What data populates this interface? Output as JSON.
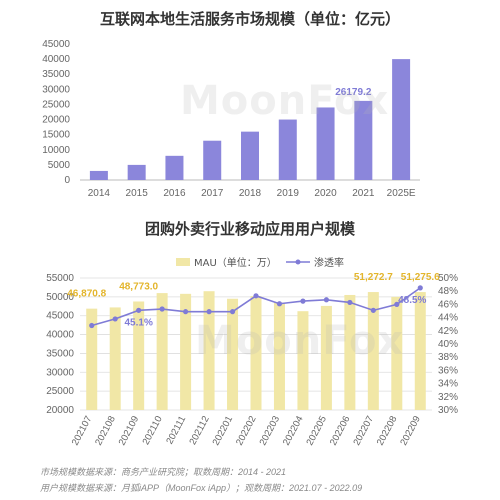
{
  "colors": {
    "bar1": "#8b86db",
    "bar2": "#f1e7a6",
    "line": "#7f7bd6",
    "label_gold": "#e3b52c",
    "label_purple": "#7f7bd6",
    "grid": "#dddddd",
    "axis_text": "#666666"
  },
  "watermark": "MoonFox",
  "sources": {
    "line1": "市场规模数据来源：商务产业研究院；取数周期：2014 - 2021",
    "line2": "用户规模数据来源：月狐iAPP（MoonFox iApp）；观数周期：2021.07 - 2022.09"
  },
  "chart_data": [
    {
      "type": "bar",
      "title": "互联网本地生活服务市场规模（单位：亿元）",
      "categories": [
        "2014",
        "2015",
        "2016",
        "2017",
        "2018",
        "2019",
        "2020",
        "2021",
        "2025E"
      ],
      "values": [
        3000,
        5000,
        8000,
        13000,
        16000,
        20000,
        24000,
        26179.2,
        40000
      ],
      "ylim": [
        0,
        45000
      ],
      "yticks": [
        0,
        5000,
        10000,
        15000,
        20000,
        25000,
        30000,
        35000,
        40000,
        45000
      ],
      "data_labels": [
        {
          "index": 7,
          "text": "26179.2"
        }
      ],
      "grid": false
    },
    {
      "type": "bar+line",
      "title": "团购外卖行业移动应用用户规模",
      "legend_position": "top",
      "categories": [
        "202107",
        "202108",
        "202109",
        "202110",
        "202111",
        "202112",
        "202201",
        "202202",
        "202203",
        "202204",
        "202205",
        "202206",
        "202207",
        "202208",
        "202209"
      ],
      "series": [
        {
          "name": "MAU（单位：万）",
          "kind": "bar",
          "axis": "left",
          "values": [
            46870.8,
            47200,
            48773.0,
            51000,
            50800,
            51500,
            49500,
            50200,
            48500,
            46200,
            47600,
            50500,
            51272.7,
            50000,
            51275.6
          ]
        },
        {
          "name": "渗透率",
          "kind": "line",
          "axis": "right",
          "values": [
            42.8,
            43.8,
            45.1,
            45.3,
            44.9,
            44.9,
            44.9,
            47.3,
            46.1,
            46.5,
            46.7,
            46.3,
            45.1,
            46.0,
            48.5
          ]
        }
      ],
      "ylim_left": [
        20000,
        55000
      ],
      "yticks_left": [
        20000,
        25000,
        30000,
        35000,
        40000,
        45000,
        50000,
        55000
      ],
      "ylim_right": [
        30,
        50
      ],
      "yticks_right": [
        "30%",
        "32%",
        "34%",
        "36%",
        "38%",
        "40%",
        "42%",
        "44%",
        "46%",
        "48%",
        "50%"
      ],
      "data_labels_bar": [
        {
          "index": 0,
          "text": "46,870.8"
        },
        {
          "index": 2,
          "text": "48,773.0"
        },
        {
          "index": 12,
          "text": "51,272.7"
        },
        {
          "index": 14,
          "text": "51,275.6"
        }
      ],
      "data_labels_line": [
        {
          "index": 2,
          "text": "45.1%"
        },
        {
          "index": 14,
          "text": "48.5%"
        }
      ],
      "grid": true
    }
  ]
}
